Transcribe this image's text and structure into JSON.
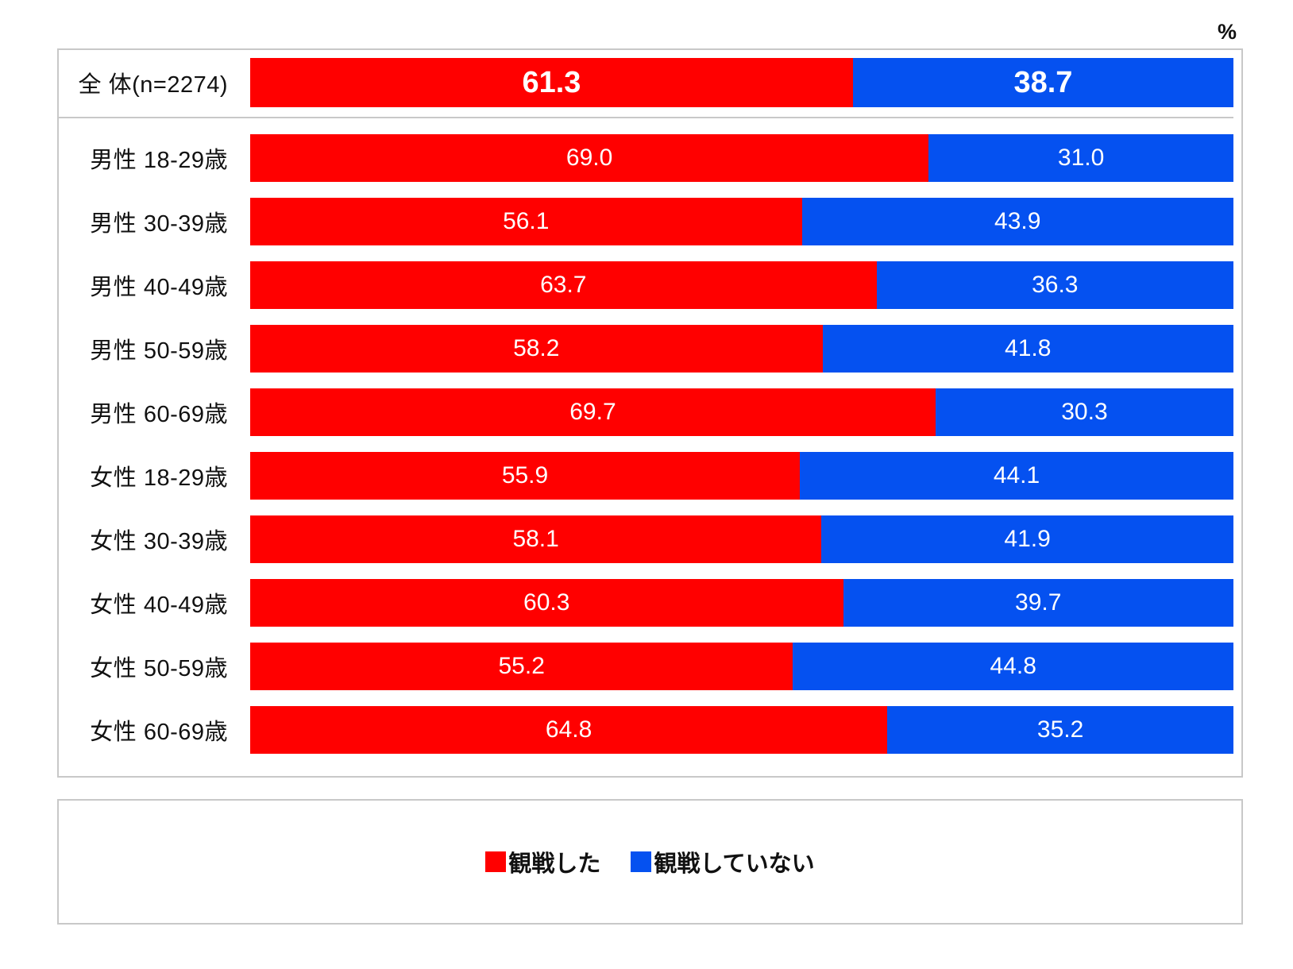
{
  "unit_label": "%",
  "colors": {
    "watched": "#FF0000",
    "not_watched": "#0551F0",
    "box_border": "#C8C8C8",
    "value_text": "#FFFFFF",
    "label_text": "#111111"
  },
  "legend": {
    "items": [
      {
        "label": "観戦した",
        "color_key": "watched"
      },
      {
        "label": "観戦していない",
        "color_key": "not_watched"
      }
    ]
  },
  "chart_data": {
    "type": "bar",
    "orientation": "horizontal",
    "stacked": true,
    "unit": "%",
    "value_range": [
      0,
      100
    ],
    "value_format": "one_decimal",
    "emphasized_row_index": 0,
    "categories": [
      "全 体(n=2274)",
      "男性 18-29歳",
      "男性 30-39歳",
      "男性 40-49歳",
      "男性 50-59歳",
      "男性 60-69歳",
      "女性 18-29歳",
      "女性 30-39歳",
      "女性 40-49歳",
      "女性 50-59歳",
      "女性 60-69歳"
    ],
    "series": [
      {
        "name": "観戦した",
        "values": [
          61.3,
          69.0,
          56.1,
          63.7,
          58.2,
          69.7,
          55.9,
          58.1,
          60.3,
          55.2,
          64.8
        ]
      },
      {
        "name": "観戦していない",
        "values": [
          38.7,
          31.0,
          43.9,
          36.3,
          41.8,
          30.3,
          44.1,
          41.9,
          39.7,
          44.8,
          35.2
        ]
      }
    ]
  }
}
